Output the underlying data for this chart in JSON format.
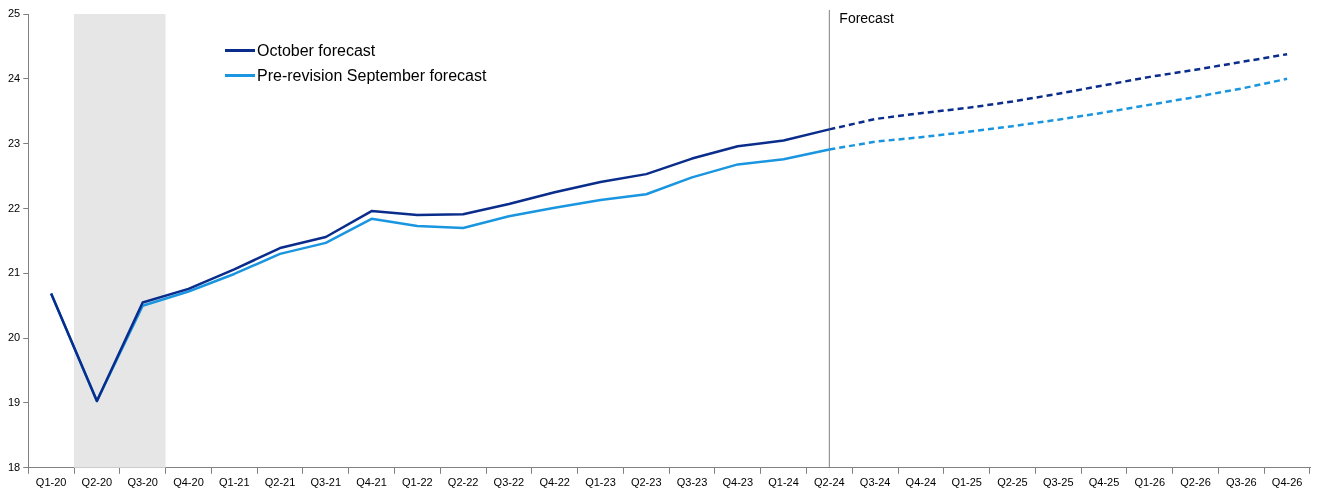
{
  "chart_data": {
    "type": "line",
    "categories": [
      "Q1-20",
      "Q2-20",
      "Q3-20",
      "Q4-20",
      "Q1-21",
      "Q2-21",
      "Q3-21",
      "Q4-21",
      "Q1-22",
      "Q2-22",
      "Q3-22",
      "Q4-22",
      "Q1-23",
      "Q2-23",
      "Q3-23",
      "Q4-23",
      "Q1-24",
      "Q2-24",
      "Q3-24",
      "Q4-24",
      "Q1-25",
      "Q2-25",
      "Q3-25",
      "Q4-25",
      "Q1-26",
      "Q2-26",
      "Q3-26",
      "Q4-26"
    ],
    "series": [
      {
        "name": "October forecast",
        "color": "#0a2d8c",
        "line_style": "solid",
        "values": [
          20.69,
          19.03,
          20.55,
          20.76,
          21.06,
          21.39,
          21.56,
          21.96,
          21.9,
          21.91,
          22.07,
          22.25,
          22.41,
          22.53,
          22.77,
          22.96,
          23.05,
          23.22,
          null,
          null,
          null,
          null,
          null,
          null,
          null,
          null,
          null,
          null
        ]
      },
      {
        "name": "Pre-revision September forecast",
        "color": "#1a96e0",
        "line_style": "solid",
        "values": [
          20.69,
          19.03,
          20.5,
          20.72,
          20.99,
          21.3,
          21.47,
          21.84,
          21.73,
          21.7,
          21.88,
          22.01,
          22.13,
          22.22,
          22.48,
          22.68,
          22.76,
          22.91,
          null,
          null,
          null,
          null,
          null,
          null,
          null,
          null,
          null,
          null
        ]
      },
      {
        "color": "#0a2d8c",
        "line_style": "dashed",
        "values": [
          null,
          null,
          null,
          null,
          null,
          null,
          null,
          null,
          null,
          null,
          null,
          null,
          null,
          null,
          null,
          null,
          null,
          23.22,
          23.38,
          23.47,
          23.55,
          23.65,
          23.77,
          23.9,
          24.03,
          24.14,
          24.26,
          24.38
        ]
      },
      {
        "color": "#1a96e0",
        "line_style": "dashed",
        "values": [
          null,
          null,
          null,
          null,
          null,
          null,
          null,
          null,
          null,
          null,
          null,
          null,
          null,
          null,
          null,
          null,
          null,
          22.91,
          23.03,
          23.1,
          23.18,
          23.27,
          23.37,
          23.48,
          23.6,
          23.72,
          23.85,
          24.0
        ]
      }
    ],
    "ylim": [
      18,
      25
    ],
    "yticks": [
      18,
      19,
      20,
      21,
      22,
      23,
      24,
      25
    ],
    "ref_lines": [
      {
        "axis": "x",
        "value": "Q2-24",
        "label": "Forecast",
        "color": "#808080"
      }
    ],
    "bands": [
      {
        "axis": "x",
        "from": "Q2-20",
        "to": "Q3-20",
        "color": "#e6e6e6"
      }
    ],
    "grid": false,
    "legend": "top left",
    "marker": "none"
  }
}
